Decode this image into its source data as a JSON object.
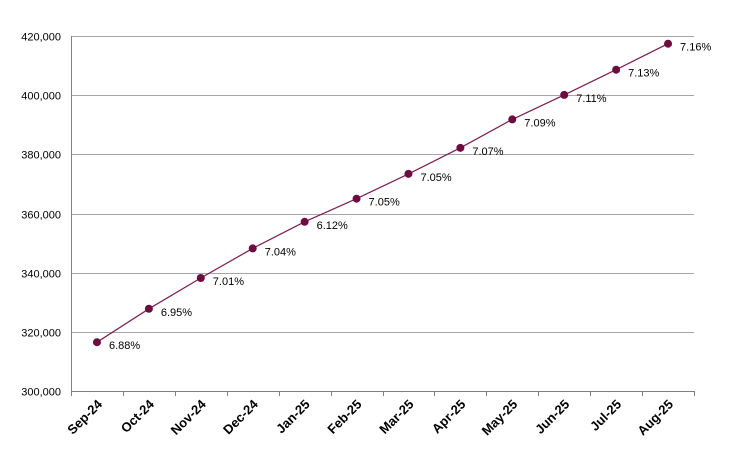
{
  "chart_data": {
    "type": "line",
    "categories": [
      "Sep-24",
      "Oct-24",
      "Nov-24",
      "Dec-24",
      "Jan-25",
      "Feb-25",
      "Mar-25",
      "Apr-25",
      "May-25",
      "Jun-25",
      "Jul-25",
      "Aug-25"
    ],
    "values": [
      316500,
      327800,
      338200,
      348200,
      357200,
      365000,
      373400,
      382200,
      391800,
      400100,
      408600,
      417400
    ],
    "data_labels": [
      "6.88%",
      "6.95%",
      "7.01%",
      "7.04%",
      "6.12%",
      "7.05%",
      "7.05%",
      "7.07%",
      "7.09%",
      "7.11%",
      "7.13%",
      "7.16%"
    ],
    "ylim": [
      300000,
      420000
    ],
    "yticks": [
      300000,
      320000,
      340000,
      360000,
      380000,
      400000,
      420000
    ],
    "ytick_labels": [
      "300,000",
      "320,000",
      "340,000",
      "360,000",
      "380,000",
      "400,000",
      "420,000"
    ],
    "grid": true,
    "line_color": "#7b2150",
    "marker_color": "#6b0d3f",
    "grid_color": "#a6a6a6"
  }
}
